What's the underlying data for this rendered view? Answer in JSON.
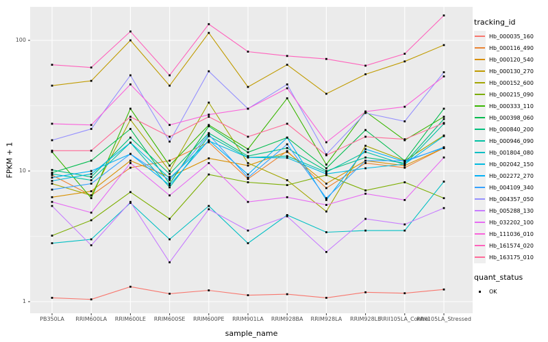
{
  "figure": {
    "panel_bg": "#EBEBEB",
    "grid_color": "#FFFFFF",
    "tick_color": "#333333",
    "axis_text_color": "#4D4D4D",
    "point_color": "#000000",
    "point_shape": "filled-square"
  },
  "axes": {
    "x_title": "sample_name",
    "y_title": "FPKM + 1",
    "y_tick_labels": [
      "1",
      "10",
      "100"
    ],
    "y_tick_values": [
      1,
      10,
      100
    ],
    "y_minor_values": [
      3.162,
      31.62
    ]
  },
  "legend": {
    "tracking_title": "tracking_id",
    "quant_title": "quant_status",
    "quant_items": [
      {
        "label": "OK",
        "marker": "black-square-point"
      }
    ]
  },
  "chart_data": {
    "type": "line",
    "title": "",
    "xlabel": "sample_name",
    "ylabel": "FPKM + 1",
    "yscale": "log10",
    "ylim": [
      0.82,
      180
    ],
    "grid": "major-and-minor, white on gray panel",
    "legend_position": "right",
    "point_marker": "small black square on every data point (quant_status OK)",
    "categories": [
      "PB350LA",
      "RRIM600LA",
      "RRIM600LE",
      "RRIM600SE",
      "RRIM600PE",
      "RRIM901LA",
      "RRIM928BA",
      "RRIM928LA",
      "RRIM928LE",
      "RRII105LA_Control",
      "RRII105LA_Stressed"
    ],
    "series": [
      {
        "name": "Hb_000035_160",
        "color": "#F8766D",
        "values": [
          1.07,
          1.04,
          1.3,
          1.15,
          1.22,
          1.12,
          1.14,
          1.07,
          1.18,
          1.16,
          1.24
        ]
      },
      {
        "name": "Hb_000116_490",
        "color": "#EA8331",
        "values": [
          9.3,
          6.5,
          10.6,
          12.0,
          16.6,
          8.7,
          14.2,
          7.4,
          11.5,
          10.6,
          15.0
        ]
      },
      {
        "name": "Hb_000120_540",
        "color": "#D89000",
        "values": [
          6.3,
          7.0,
          12.0,
          9.0,
          12.5,
          11.0,
          14.0,
          8.0,
          12.0,
          11.0,
          15.0
        ]
      },
      {
        "name": "Hb_000130_270",
        "color": "#C09B00",
        "values": [
          45,
          49,
          100,
          45,
          114,
          44,
          65,
          39,
          55,
          69,
          92
        ]
      },
      {
        "name": "Hb_000152_600",
        "color": "#A3A500",
        "values": [
          8.0,
          6.5,
          24.7,
          10.0,
          33.4,
          11.5,
          8.5,
          4.9,
          15.6,
          12.0,
          18.7
        ]
      },
      {
        "name": "Hb_000215_090",
        "color": "#7CAE00",
        "values": [
          3.2,
          4.2,
          6.9,
          4.3,
          9.4,
          8.2,
          7.8,
          9.3,
          7.1,
          8.2,
          6.2
        ]
      },
      {
        "name": "Hb_000333_110",
        "color": "#39B600",
        "values": [
          14.0,
          6.2,
          30,
          11.0,
          22.5,
          14.7,
          36,
          11.2,
          28.5,
          17.2,
          26
        ]
      },
      {
        "name": "Hb_000398_060",
        "color": "#00BB4E",
        "values": [
          9.7,
          12.0,
          21.0,
          8.0,
          22.0,
          13.9,
          18.0,
          10.5,
          20.6,
          12.0,
          30
        ]
      },
      {
        "name": "Hb_000840_200",
        "color": "#00BF7D",
        "values": [
          10.2,
          9.0,
          18.0,
          9.5,
          19.5,
          13.0,
          15.0,
          10.0,
          12.7,
          11.5,
          25
        ]
      },
      {
        "name": "Hb_000946_090",
        "color": "#00C1A3",
        "values": [
          9.5,
          8.5,
          16.5,
          7.5,
          18.5,
          12.7,
          13.0,
          9.8,
          14.0,
          11.2,
          23
        ]
      },
      {
        "name": "Hb_001804_080",
        "color": "#00BFC4",
        "values": [
          2.8,
          3.0,
          5.7,
          3.0,
          5.4,
          2.8,
          4.6,
          3.4,
          3.5,
          3.5,
          8.3
        ]
      },
      {
        "name": "Hb_002042_150",
        "color": "#00BAE0",
        "values": [
          8.4,
          9.5,
          16.5,
          8.8,
          17.0,
          12.7,
          12.6,
          9.5,
          10.5,
          11.3,
          18.5
        ]
      },
      {
        "name": "Hb_002272_270",
        "color": "#00B0F6",
        "values": [
          8.9,
          10.0,
          13.5,
          7.8,
          17.2,
          9.4,
          18.0,
          6.0,
          14.7,
          11.8,
          15.2
        ]
      },
      {
        "name": "Hb_004109_340",
        "color": "#35A2FF",
        "values": [
          7.2,
          8.0,
          13.5,
          8.5,
          19.0,
          8.9,
          16.0,
          6.2,
          12.0,
          12.0,
          15.0
        ]
      },
      {
        "name": "Hb_004357_050",
        "color": "#9590FF",
        "values": [
          17.2,
          21.0,
          54,
          16.8,
          58,
          30,
          46,
          13.4,
          27.8,
          24,
          57
        ]
      },
      {
        "name": "Hb_005288_130",
        "color": "#C77CFF",
        "values": [
          5.4,
          2.7,
          5.8,
          2.0,
          5.1,
          3.5,
          4.5,
          2.4,
          4.3,
          3.9,
          5.2
        ]
      },
      {
        "name": "Hb_032202_100",
        "color": "#E76BF3",
        "values": [
          5.8,
          4.8,
          11.5,
          6.5,
          11.5,
          5.8,
          6.3,
          5.5,
          6.7,
          6.0,
          12.7
        ]
      },
      {
        "name": "Hb_111036_010",
        "color": "#FA62DB",
        "values": [
          23,
          22.5,
          46,
          22.5,
          27,
          30,
          43,
          16.6,
          28.5,
          31,
          53
        ]
      },
      {
        "name": "Hb_161574_020",
        "color": "#FF62BC",
        "values": [
          65,
          62,
          117,
          54,
          133,
          82,
          76,
          72,
          64,
          79,
          155
        ]
      },
      {
        "name": "Hb_163175_010",
        "color": "#FF6A98",
        "values": [
          14.3,
          14.3,
          26,
          18.3,
          26,
          18.3,
          23,
          13.2,
          18.3,
          17.5,
          23.3
        ]
      }
    ]
  }
}
